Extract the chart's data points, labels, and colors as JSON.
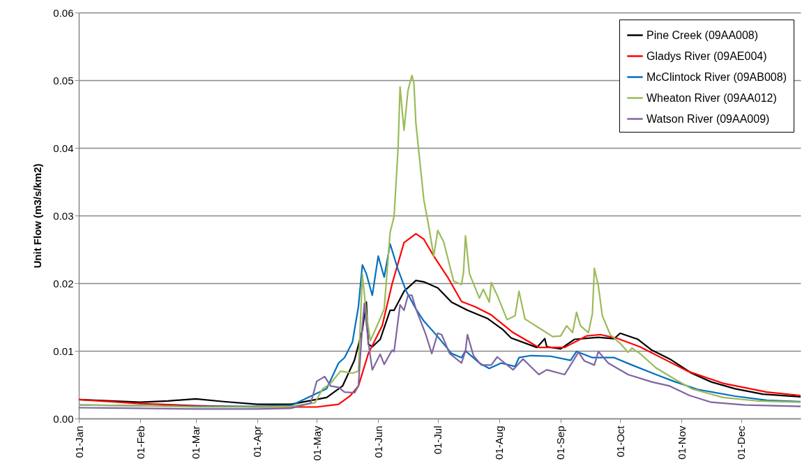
{
  "chart_data": {
    "type": "line",
    "ylabel": "Unit Flow (m3/s/km2)",
    "xlim": [
      "--01-01",
      "--12-31"
    ],
    "xticks": [
      {
        "value": "--01-01",
        "label": "01-Jan"
      },
      {
        "value": "--02-01",
        "label": "01-Feb"
      },
      {
        "value": "--03-01",
        "label": "01-Mar"
      },
      {
        "value": "--04-01",
        "label": "01-Apr"
      },
      {
        "value": "--05-01",
        "label": "01-May"
      },
      {
        "value": "--06-01",
        "label": "01-Jun"
      },
      {
        "value": "--07-01",
        "label": "01-Jul"
      },
      {
        "value": "--08-01",
        "label": "01-Aug"
      },
      {
        "value": "--09-01",
        "label": "01-Sep"
      },
      {
        "value": "--10-01",
        "label": "01-Oct"
      },
      {
        "value": "--11-01",
        "label": "01-Nov"
      },
      {
        "value": "--12-01",
        "label": "01-Dec"
      }
    ],
    "ylim": [
      0,
      0.06
    ],
    "yticks": [
      {
        "value": 0,
        "label": "0.00"
      },
      {
        "value": 0.01,
        "label": "0.01"
      },
      {
        "value": 0.02,
        "label": "0.02"
      },
      {
        "value": 0.03,
        "label": "0.03"
      },
      {
        "value": 0.04,
        "label": "0.04"
      },
      {
        "value": 0.05,
        "label": "0.05"
      },
      {
        "value": 0.06,
        "label": "0.06"
      }
    ],
    "grid": "y",
    "legend": "top right",
    "marker": "none",
    "line_style": "solid",
    "series": [
      {
        "name": "Pine Creek (09AA008)",
        "color": "#000000",
        "x": [
          "--01-01",
          "--02-01",
          "--02-15",
          "--03-01",
          "--03-15",
          "--04-01",
          "--04-18",
          "--05-06",
          "--05-14",
          "--05-20",
          "--05-24",
          "--05-26",
          "--05-27",
          "--05-29",
          "--06-02",
          "--06-07",
          "--06-09",
          "--06-14",
          "--06-20",
          "--06-24",
          "--07-01",
          "--07-08",
          "--07-16",
          "--07-26",
          "--08-03",
          "--08-07",
          "--08-20",
          "--08-24",
          "--08-25",
          "--09-01",
          "--09-08",
          "--09-20",
          "--09-28",
          "--10-01",
          "--10-10",
          "--10-17",
          "--10-26",
          "--11-06",
          "--11-16",
          "--11-28",
          "--12-12",
          "--12-31"
        ],
        "values": [
          0.0028,
          0.0024,
          0.0026,
          0.0029,
          0.0025,
          0.0021,
          0.0021,
          0.0031,
          0.0048,
          0.0086,
          0.0131,
          0.0172,
          0.011,
          0.0106,
          0.0117,
          0.016,
          0.016,
          0.0188,
          0.0204,
          0.0202,
          0.0193,
          0.0172,
          0.016,
          0.0148,
          0.0131,
          0.0119,
          0.0105,
          0.0118,
          0.0106,
          0.0103,
          0.0117,
          0.012,
          0.0118,
          0.0126,
          0.0117,
          0.0101,
          0.0088,
          0.0067,
          0.0054,
          0.0044,
          0.0036,
          0.0032
        ]
      },
      {
        "name": "Gladys River (09AE004)",
        "color": "#ff0000",
        "x": [
          "--01-01",
          "--02-01",
          "--03-01",
          "--04-01",
          "--05-01",
          "--05-12",
          "--05-18",
          "--05-22",
          "--05-27",
          "--06-03",
          "--06-08",
          "--06-14",
          "--06-20",
          "--06-24",
          "--06-29",
          "--07-06",
          "--07-13",
          "--07-20",
          "--07-28",
          "--08-08",
          "--08-21",
          "--09-03",
          "--09-14",
          "--09-21",
          "--09-29",
          "--10-11",
          "--10-23",
          "--11-04",
          "--11-22",
          "--12-14",
          "--12-31"
        ],
        "values": [
          0.0028,
          0.0022,
          0.0019,
          0.0017,
          0.0017,
          0.0021,
          0.0034,
          0.0048,
          0.0096,
          0.0137,
          0.0199,
          0.026,
          0.0273,
          0.0265,
          0.024,
          0.0209,
          0.0173,
          0.0165,
          0.0153,
          0.0127,
          0.0105,
          0.0105,
          0.0122,
          0.0124,
          0.0119,
          0.0106,
          0.0088,
          0.007,
          0.0052,
          0.0039,
          0.0034
        ]
      },
      {
        "name": "McClintock River (09AB008)",
        "color": "#0070c0",
        "x": [
          "--01-01",
          "--02-01",
          "--03-01",
          "--04-01",
          "--04-18",
          "--04-28",
          "--05-06",
          "--05-12",
          "--05-15",
          "--05-19",
          "--05-22",
          "--05-24",
          "--05-26",
          "--05-29",
          "--06-01",
          "--06-04",
          "--06-07",
          "--06-11",
          "--06-15",
          "--06-20",
          "--06-24",
          "--07-01",
          "--07-08",
          "--07-13",
          "--07-15",
          "--07-22",
          "--07-27",
          "--08-02",
          "--08-09",
          "--08-11",
          "--08-17",
          "--08-27",
          "--09-06",
          "--09-09",
          "--09-17",
          "--09-28",
          "--10-07",
          "--10-20",
          "--10-28",
          "--11-09",
          "--11-28",
          "--12-14",
          "--12-31"
        ],
        "values": [
          0.002,
          0.0019,
          0.0018,
          0.0018,
          0.0019,
          0.0033,
          0.0044,
          0.0082,
          0.009,
          0.0113,
          0.0165,
          0.0227,
          0.0214,
          0.0182,
          0.024,
          0.0209,
          0.0258,
          0.022,
          0.0189,
          0.0162,
          0.0144,
          0.0121,
          0.0096,
          0.009,
          0.01,
          0.0082,
          0.0074,
          0.0082,
          0.0077,
          0.009,
          0.0093,
          0.0092,
          0.0086,
          0.0099,
          0.009,
          0.009,
          0.0079,
          0.0064,
          0.0055,
          0.0043,
          0.0033,
          0.0027,
          0.0025
        ]
      },
      {
        "name": "Wheaton River (09AA012)",
        "color": "#9bbb59",
        "x": [
          "--01-01",
          "--02-01",
          "--03-01",
          "--04-01",
          "--04-18",
          "--04-30",
          "--05-04",
          "--05-08",
          "--05-13",
          "--05-19",
          "--05-22",
          "--05-24",
          "--05-26",
          "--05-28",
          "--06-01",
          "--06-04",
          "--06-07",
          "--06-09",
          "--06-11",
          "--06-12",
          "--06-14",
          "--06-16",
          "--06-18",
          "--06-19",
          "--06-20",
          "--06-24",
          "--06-26",
          "--06-29",
          "--07-01",
          "--07-04",
          "--07-09",
          "--07-13",
          "--07-14",
          "--07-15",
          "--07-17",
          "--07-22",
          "--07-24",
          "--07-27",
          "--07-28",
          "--07-31",
          "--08-05",
          "--08-09",
          "--08-11",
          "--08-14",
          "--08-21",
          "--08-28",
          "--09-01",
          "--09-04",
          "--09-07",
          "--09-09",
          "--09-11",
          "--09-15",
          "--09-17",
          "--09-18",
          "--09-20",
          "--09-22",
          "--09-26",
          "--10-01",
          "--10-05",
          "--10-07",
          "--10-11",
          "--10-19",
          "--10-28",
          "--11-06",
          "--11-22",
          "--12-09",
          "--12-31"
        ],
        "values": [
          0.002,
          0.0019,
          0.0017,
          0.0017,
          0.0018,
          0.0023,
          0.0044,
          0.0052,
          0.007,
          0.0067,
          0.007,
          0.0213,
          0.0155,
          0.0115,
          0.0141,
          0.0162,
          0.0275,
          0.0299,
          0.0399,
          0.049,
          0.0426,
          0.0485,
          0.0507,
          0.0495,
          0.0436,
          0.0323,
          0.0292,
          0.024,
          0.0278,
          0.0261,
          0.0203,
          0.0198,
          0.0216,
          0.027,
          0.0214,
          0.0178,
          0.0191,
          0.0172,
          0.0201,
          0.0182,
          0.0146,
          0.0152,
          0.0188,
          0.0147,
          0.0134,
          0.0121,
          0.0122,
          0.0137,
          0.0127,
          0.0157,
          0.0137,
          0.0127,
          0.0155,
          0.0222,
          0.0196,
          0.0152,
          0.0124,
          0.0111,
          0.0098,
          0.0104,
          0.0096,
          0.0075,
          0.0059,
          0.0044,
          0.0031,
          0.0026,
          0.0024
        ]
      },
      {
        "name": "Watson River (09AA009)",
        "color": "#8064a2",
        "x": [
          "--01-01",
          "--02-01",
          "--03-01",
          "--04-01",
          "--04-18",
          "--04-28",
          "--05-01",
          "--05-05",
          "--05-08",
          "--05-12",
          "--05-15",
          "--05-20",
          "--05-22",
          "--05-24",
          "--05-25",
          "--05-27",
          "--05-29",
          "--06-02",
          "--06-04",
          "--06-08",
          "--06-09",
          "--06-12",
          "--06-14",
          "--06-16",
          "--06-18",
          "--06-20",
          "--06-25",
          "--06-28",
          "--07-01",
          "--07-03",
          "--07-07",
          "--07-13",
          "--07-15",
          "--07-16",
          "--07-19",
          "--07-23",
          "--07-28",
          "--07-31",
          "--08-08",
          "--08-13",
          "--08-21",
          "--08-25",
          "--09-03",
          "--09-06",
          "--09-10",
          "--09-13",
          "--09-18",
          "--09-20",
          "--09-25",
          "--10-05",
          "--10-17",
          "--10-26",
          "--11-05",
          "--11-16",
          "--12-03",
          "--12-31"
        ],
        "values": [
          0.0016,
          0.0015,
          0.0014,
          0.0014,
          0.0015,
          0.0023,
          0.0055,
          0.0062,
          0.0048,
          0.0046,
          0.0039,
          0.0038,
          0.0048,
          0.0137,
          0.017,
          0.0113,
          0.0072,
          0.0095,
          0.008,
          0.0101,
          0.0099,
          0.0168,
          0.016,
          0.0182,
          0.0182,
          0.0162,
          0.0124,
          0.0096,
          0.0126,
          0.0124,
          0.0096,
          0.0082,
          0.01,
          0.0124,
          0.0093,
          0.0079,
          0.0079,
          0.0091,
          0.0072,
          0.0088,
          0.0065,
          0.0072,
          0.0065,
          0.0079,
          0.0098,
          0.0085,
          0.0079,
          0.0099,
          0.0082,
          0.0065,
          0.0054,
          0.0048,
          0.0034,
          0.0024,
          0.002,
          0.0018
        ]
      }
    ]
  }
}
